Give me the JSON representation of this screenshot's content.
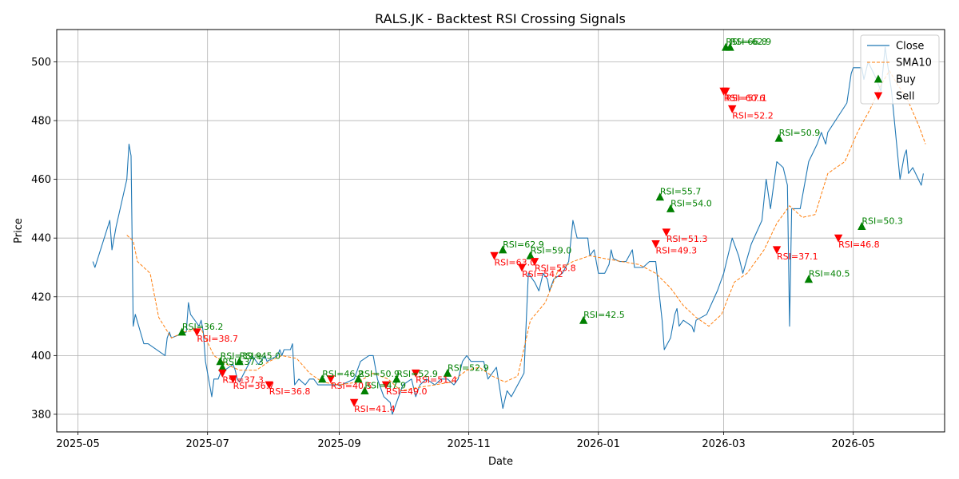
{
  "chart_data": {
    "type": "line",
    "title": "RALS.JK - Backtest RSI Crossing Signals",
    "xlabel": "Date",
    "ylabel": "Price",
    "x_scale": "date",
    "xlim": [
      "2025-04-21",
      "2026-06-13"
    ],
    "ylim": [
      374,
      511
    ],
    "grid": true,
    "legend_position": "upper right",
    "x_ticks": [
      "2025-05",
      "2025-07",
      "2025-09",
      "2025-11",
      "2026-01",
      "2026-03",
      "2026-05"
    ],
    "x_tick_dates": [
      "2025-05-01",
      "2025-07-01",
      "2025-09-01",
      "2025-11-01",
      "2026-01-01",
      "2026-03-01",
      "2026-05-01"
    ],
    "y_ticks": [
      380,
      400,
      420,
      440,
      460,
      480,
      500
    ],
    "colors": {
      "close": "#1f77b4",
      "sma": "#ff7f0e",
      "buy": "#008000",
      "sell": "#ff0000",
      "buy_text": "#008000",
      "sell_text": "#ff0000"
    },
    "series": [
      {
        "name": "Close",
        "style": "solid",
        "points": [
          [
            "2025-05-08",
            432
          ],
          [
            "2025-05-09",
            430
          ],
          [
            "2025-05-16",
            446
          ],
          [
            "2025-05-17",
            436
          ],
          [
            "2025-05-19",
            444
          ],
          [
            "2025-05-24",
            460
          ],
          [
            "2025-05-25",
            472
          ],
          [
            "2025-05-26",
            468
          ],
          [
            "2025-05-27",
            410
          ],
          [
            "2025-05-28",
            414
          ],
          [
            "2025-06-01",
            404
          ],
          [
            "2025-06-03",
            404
          ],
          [
            "2025-06-11",
            400
          ],
          [
            "2025-06-12",
            406
          ],
          [
            "2025-06-13",
            408
          ],
          [
            "2025-06-14",
            406
          ],
          [
            "2025-06-21",
            408
          ],
          [
            "2025-06-22",
            418
          ],
          [
            "2025-06-23",
            414
          ],
          [
            "2025-06-27",
            410
          ],
          [
            "2025-06-28",
            412
          ],
          [
            "2025-06-29",
            408
          ],
          [
            "2025-06-30",
            398
          ],
          [
            "2025-07-03",
            386
          ],
          [
            "2025-07-04",
            392
          ],
          [
            "2025-07-06",
            392
          ],
          [
            "2025-07-07",
            394
          ],
          [
            "2025-07-13",
            397
          ],
          [
            "2025-07-14",
            395
          ],
          [
            "2025-07-15",
            392
          ],
          [
            "2025-07-16",
            391
          ],
          [
            "2025-07-21",
            398
          ],
          [
            "2025-07-22",
            400
          ],
          [
            "2025-07-25",
            397
          ],
          [
            "2025-07-28",
            400
          ],
          [
            "2025-07-29",
            398
          ],
          [
            "2025-08-03",
            400
          ],
          [
            "2025-08-04",
            402
          ],
          [
            "2025-08-05",
            400
          ],
          [
            "2025-08-06",
            402
          ],
          [
            "2025-08-09",
            402
          ],
          [
            "2025-08-10",
            404
          ],
          [
            "2025-08-11",
            390
          ],
          [
            "2025-08-13",
            392
          ],
          [
            "2025-08-16",
            390
          ],
          [
            "2025-08-18",
            392
          ],
          [
            "2025-08-20",
            392
          ],
          [
            "2025-08-22",
            390
          ],
          [
            "2025-08-24",
            390
          ],
          [
            "2025-09-02",
            390
          ],
          [
            "2025-09-08",
            392
          ],
          [
            "2025-09-11",
            398
          ],
          [
            "2025-09-15",
            400
          ],
          [
            "2025-09-17",
            400
          ],
          [
            "2025-09-19",
            392
          ],
          [
            "2025-09-22",
            386
          ],
          [
            "2025-09-25",
            384
          ],
          [
            "2025-09-26",
            380
          ],
          [
            "2025-10-01",
            390
          ],
          [
            "2025-10-05",
            392
          ],
          [
            "2025-10-07",
            386
          ],
          [
            "2025-10-09",
            390
          ],
          [
            "2025-10-12",
            392
          ],
          [
            "2025-10-16",
            390
          ],
          [
            "2025-10-19",
            392
          ],
          [
            "2025-10-22",
            392
          ],
          [
            "2025-10-25",
            390
          ],
          [
            "2025-10-27",
            392
          ],
          [
            "2025-10-29",
            398
          ],
          [
            "2025-10-31",
            400
          ],
          [
            "2025-11-02",
            398
          ],
          [
            "2025-11-05",
            398
          ],
          [
            "2025-11-08",
            398
          ],
          [
            "2025-11-10",
            392
          ],
          [
            "2025-11-14",
            396
          ],
          [
            "2025-11-17",
            382
          ],
          [
            "2025-11-19",
            388
          ],
          [
            "2025-11-21",
            386
          ],
          [
            "2025-11-24",
            390
          ],
          [
            "2025-11-27",
            394
          ],
          [
            "2025-11-29",
            428
          ],
          [
            "2025-12-02",
            425
          ],
          [
            "2025-12-04",
            422
          ],
          [
            "2025-12-06",
            428
          ],
          [
            "2025-12-08",
            426
          ],
          [
            "2025-12-09",
            422
          ],
          [
            "2025-12-11",
            426
          ],
          [
            "2025-12-15",
            428
          ],
          [
            "2025-12-18",
            432
          ],
          [
            "2025-12-20",
            446
          ],
          [
            "2025-12-22",
            440
          ],
          [
            "2025-12-27",
            440
          ],
          [
            "2025-12-28",
            434
          ],
          [
            "2025-12-30",
            436
          ],
          [
            "2026-01-01",
            428
          ],
          [
            "2026-01-04",
            428
          ],
          [
            "2026-01-06",
            431
          ],
          [
            "2026-01-07",
            436
          ],
          [
            "2026-01-08",
            433
          ],
          [
            "2026-01-11",
            432
          ],
          [
            "2026-01-14",
            432
          ],
          [
            "2026-01-17",
            436
          ],
          [
            "2026-01-18",
            430
          ],
          [
            "2026-01-22",
            430
          ],
          [
            "2026-01-25",
            432
          ],
          [
            "2026-01-28",
            432
          ],
          [
            "2026-01-31",
            412
          ],
          [
            "2026-02-01",
            402
          ],
          [
            "2026-02-04",
            406
          ],
          [
            "2026-02-06",
            414
          ],
          [
            "2026-02-07",
            416
          ],
          [
            "2026-02-08",
            410
          ],
          [
            "2026-02-10",
            412
          ],
          [
            "2026-02-14",
            410
          ],
          [
            "2026-02-15",
            408
          ],
          [
            "2026-02-16",
            412
          ],
          [
            "2026-02-21",
            414
          ],
          [
            "2026-02-26",
            422
          ],
          [
            "2026-03-01",
            428
          ],
          [
            "2026-03-03",
            434
          ],
          [
            "2026-03-05",
            440
          ],
          [
            "2026-03-08",
            434
          ],
          [
            "2026-03-10",
            428
          ],
          [
            "2026-03-14",
            438
          ],
          [
            "2026-03-19",
            446
          ],
          [
            "2026-03-21",
            460
          ],
          [
            "2026-03-23",
            450
          ],
          [
            "2026-03-26",
            466
          ],
          [
            "2026-03-29",
            464
          ],
          [
            "2026-03-31",
            458
          ],
          [
            "2026-04-01",
            410
          ],
          [
            "2026-04-02",
            450
          ],
          [
            "2026-04-06",
            450
          ],
          [
            "2026-04-10",
            466
          ],
          [
            "2026-04-14",
            472
          ],
          [
            "2026-04-16",
            476
          ],
          [
            "2026-04-18",
            472
          ],
          [
            "2026-04-19",
            476
          ],
          [
            "2026-04-28",
            486
          ],
          [
            "2026-04-30",
            496
          ],
          [
            "2026-05-01",
            498
          ],
          [
            "2026-05-05",
            498
          ],
          [
            "2026-05-06",
            494
          ],
          [
            "2026-05-08",
            500
          ],
          [
            "2026-05-12",
            494
          ],
          [
            "2026-05-14",
            490
          ],
          [
            "2026-05-16",
            505
          ],
          [
            "2026-05-17",
            500
          ],
          [
            "2026-05-19",
            490
          ],
          [
            "2026-05-23",
            460
          ],
          [
            "2026-05-25",
            468
          ],
          [
            "2026-05-26",
            470
          ],
          [
            "2026-05-27",
            462
          ],
          [
            "2026-05-29",
            464
          ],
          [
            "2026-06-02",
            458
          ],
          [
            "2026-06-03",
            462
          ]
        ]
      },
      {
        "name": "SMA10",
        "style": "dashed",
        "points": [
          [
            "2025-05-24",
            441
          ],
          [
            "2025-05-27",
            439
          ],
          [
            "2025-05-29",
            432
          ],
          [
            "2025-06-04",
            428
          ],
          [
            "2025-06-08",
            413
          ],
          [
            "2025-06-14",
            406
          ],
          [
            "2025-06-20",
            408
          ],
          [
            "2025-06-28",
            409
          ],
          [
            "2025-07-04",
            400
          ],
          [
            "2025-07-10",
            397
          ],
          [
            "2025-07-16",
            395
          ],
          [
            "2025-07-24",
            395
          ],
          [
            "2025-07-30",
            398
          ],
          [
            "2025-08-05",
            400
          ],
          [
            "2025-08-12",
            399
          ],
          [
            "2025-08-18",
            394
          ],
          [
            "2025-08-24",
            391
          ],
          [
            "2025-09-01",
            390
          ],
          [
            "2025-09-10",
            391
          ],
          [
            "2025-09-17",
            394
          ],
          [
            "2025-09-24",
            392
          ],
          [
            "2025-09-30",
            388
          ],
          [
            "2025-10-07",
            389
          ],
          [
            "2025-10-16",
            390
          ],
          [
            "2025-10-24",
            391
          ],
          [
            "2025-10-31",
            395
          ],
          [
            "2025-11-06",
            396
          ],
          [
            "2025-11-12",
            393
          ],
          [
            "2025-11-18",
            391
          ],
          [
            "2025-11-24",
            393
          ],
          [
            "2025-11-30",
            412
          ],
          [
            "2025-12-07",
            418
          ],
          [
            "2025-12-13",
            429
          ],
          [
            "2025-12-20",
            432
          ],
          [
            "2025-12-28",
            434
          ],
          [
            "2026-01-04",
            433
          ],
          [
            "2026-01-12",
            432
          ],
          [
            "2026-01-20",
            431
          ],
          [
            "2026-01-28",
            428
          ],
          [
            "2026-02-04",
            423
          ],
          [
            "2026-02-10",
            417
          ],
          [
            "2026-02-16",
            413
          ],
          [
            "2026-02-22",
            410
          ],
          [
            "2026-02-28",
            414
          ],
          [
            "2026-03-06",
            425
          ],
          [
            "2026-03-12",
            428
          ],
          [
            "2026-03-20",
            436
          ],
          [
            "2026-03-26",
            445
          ],
          [
            "2026-04-01",
            451
          ],
          [
            "2026-04-07",
            447
          ],
          [
            "2026-04-13",
            448
          ],
          [
            "2026-04-19",
            462
          ],
          [
            "2026-04-27",
            466
          ],
          [
            "2026-05-03",
            476
          ],
          [
            "2026-05-09",
            484
          ],
          [
            "2026-05-14",
            492
          ],
          [
            "2026-05-18",
            497
          ],
          [
            "2026-05-22",
            492
          ],
          [
            "2026-05-26",
            488
          ],
          [
            "2026-06-01",
            478
          ],
          [
            "2026-06-04",
            472
          ]
        ]
      }
    ],
    "buy_signals": [
      {
        "date": "2025-06-19",
        "price": 408,
        "label": "RSI=36.2"
      },
      {
        "date": "2025-07-07",
        "price": 398,
        "label": "RSI=39.9"
      },
      {
        "date": "2025-07-08",
        "price": 396,
        "label": "RSI=37.3"
      },
      {
        "date": "2025-07-16",
        "price": 398,
        "label": "RSI=45.0"
      },
      {
        "date": "2025-08-24",
        "price": 392,
        "label": "RSI=46.2"
      },
      {
        "date": "2025-09-10",
        "price": 392,
        "label": "RSI=50.9"
      },
      {
        "date": "2025-09-13",
        "price": 388,
        "label": "RSI=47.9"
      },
      {
        "date": "2025-09-28",
        "price": 392,
        "label": "RSI=52.9"
      },
      {
        "date": "2025-10-22",
        "price": 394,
        "label": "RSI=52.9"
      },
      {
        "date": "2025-11-17",
        "price": 436,
        "label": "RSI=62.9"
      },
      {
        "date": "2025-11-30",
        "price": 434,
        "label": "RSI=59.0"
      },
      {
        "date": "2025-12-25",
        "price": 412,
        "label": "RSI=42.5"
      },
      {
        "date": "2026-01-30",
        "price": 454,
        "label": "RSI=55.7"
      },
      {
        "date": "2026-02-04",
        "price": 450,
        "label": "RSI=54.0"
      },
      {
        "date": "2026-03-02",
        "price": 505,
        "label": "RSI=66.8"
      },
      {
        "date": "2026-03-04",
        "price": 505,
        "label": "RSI=62.9"
      },
      {
        "date": "2026-03-27",
        "price": 474,
        "label": "RSI=50.9"
      },
      {
        "date": "2026-04-10",
        "price": 426,
        "label": "RSI=40.5"
      },
      {
        "date": "2026-05-05",
        "price": 444,
        "label": "RSI=50.3"
      }
    ],
    "sell_signals": [
      {
        "date": "2025-06-26",
        "price": 408,
        "label": "RSI=38.7"
      },
      {
        "date": "2025-07-08",
        "price": 394,
        "label": "RSI=37.3"
      },
      {
        "date": "2025-07-13",
        "price": 392,
        "label": "RSI=36.7"
      },
      {
        "date": "2025-07-30",
        "price": 390,
        "label": "RSI=36.8"
      },
      {
        "date": "2025-08-28",
        "price": 392,
        "label": "RSI=40.5"
      },
      {
        "date": "2025-09-08",
        "price": 384,
        "label": "RSI=41.4"
      },
      {
        "date": "2025-09-23",
        "price": 390,
        "label": "RSI=49.0"
      },
      {
        "date": "2025-10-07",
        "price": 394,
        "label": "RSI=51.4"
      },
      {
        "date": "2025-11-13",
        "price": 434,
        "label": "RSI=63.0"
      },
      {
        "date": "2025-11-26",
        "price": 430,
        "label": "RSI=54.2"
      },
      {
        "date": "2025-12-02",
        "price": 432,
        "label": "RSI=55.8"
      },
      {
        "date": "2026-01-28",
        "price": 438,
        "label": "RSI=49.3"
      },
      {
        "date": "2026-02-02",
        "price": 442,
        "label": "RSI=51.3"
      },
      {
        "date": "2026-03-01",
        "price": 490,
        "label": "RSI=60.6"
      },
      {
        "date": "2026-03-02",
        "price": 490,
        "label": "RSI=57.1"
      },
      {
        "date": "2026-03-05",
        "price": 484,
        "label": "RSI=52.2"
      },
      {
        "date": "2026-03-26",
        "price": 436,
        "label": "RSI=37.1"
      },
      {
        "date": "2026-04-24",
        "price": 440,
        "label": "RSI=46.8"
      }
    ],
    "legend": [
      {
        "label": "Close",
        "kind": "line-solid"
      },
      {
        "label": "SMA10",
        "kind": "line-dashed"
      },
      {
        "label": "Buy",
        "kind": "marker-up"
      },
      {
        "label": "Sell",
        "kind": "marker-down"
      }
    ]
  }
}
